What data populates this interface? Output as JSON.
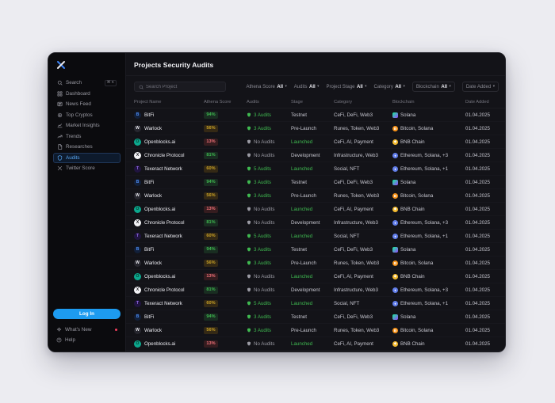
{
  "window": {
    "title": "Projects Security Audits"
  },
  "colors": {
    "accent_blue": "#1d9bf0",
    "positive_green": "#3fb950",
    "warning_yellow": "#c9a227",
    "negative_red": "#f07178",
    "active_link_blue": "#58a6f2"
  },
  "sidebar": {
    "items": [
      {
        "label": "Search",
        "icon": "search",
        "shortcut": "⌘ K"
      },
      {
        "label": "Dashboard",
        "icon": "dashboard"
      },
      {
        "label": "News Feed",
        "icon": "news-feed"
      },
      {
        "label": "Top Cryptos",
        "icon": "top-cryptos"
      },
      {
        "label": "Market Insights",
        "icon": "market-insights"
      },
      {
        "label": "Trends",
        "icon": "trends"
      },
      {
        "label": "Researches",
        "icon": "researches"
      },
      {
        "label": "Audits",
        "icon": "shield",
        "active": true
      },
      {
        "label": "Twitter Score",
        "icon": "x-twitter"
      }
    ],
    "login_label": "Log In",
    "whats_new_label": "What's New",
    "help_label": "Help"
  },
  "toolbar": {
    "search_placeholder": "Search Project",
    "filters": [
      {
        "label": "Athena Score",
        "value": "All"
      },
      {
        "label": "Audits",
        "value": "All"
      },
      {
        "label": "Project Stage",
        "value": "All"
      },
      {
        "label": "Category",
        "value": "All"
      },
      {
        "label": "Blockchain",
        "value": "All"
      },
      {
        "label": "Date Added",
        "value": ""
      }
    ]
  },
  "table": {
    "columns": [
      "Project Name",
      "Athena Score",
      "Audits",
      "Stage",
      "Category",
      "Blockchain",
      "Date Added"
    ],
    "rows": [
      {
        "name": "BitFi",
        "avatar": "bitfi",
        "score": "94%",
        "score_level": "high",
        "audits_label": "3 Audits",
        "audited": true,
        "stage": "Testnet",
        "stage_live": false,
        "category": "CeFi, DeFi, Web3",
        "chain": "solana",
        "blockchain": "Solana",
        "date": "01.04.2025"
      },
      {
        "name": "Warlock",
        "avatar": "warlock",
        "score": "56%",
        "score_level": "mid",
        "audits_label": "3 Audits",
        "audited": true,
        "stage": "Pre-Launch",
        "stage_live": false,
        "category": "Runes, Token, Web3",
        "chain": "bitcoin",
        "blockchain": "Bitcoin, Solana",
        "date": "01.04.2025"
      },
      {
        "name": "Openblocks.ai",
        "avatar": "openblocks",
        "score": "13%",
        "score_level": "low",
        "audits_label": "No Audits",
        "audited": false,
        "stage": "Launched",
        "stage_live": true,
        "category": "CeFi, AI, Payment",
        "chain": "bnb",
        "blockchain": "BNB Chain",
        "date": "01.04.2025"
      },
      {
        "name": "Chronicle Protocol",
        "avatar": "chronicle",
        "score": "81%",
        "score_level": "high",
        "audits_label": "No Audits",
        "audited": false,
        "stage": "Development",
        "stage_live": false,
        "category": "Infrastructure, Web3",
        "chain": "ethereum",
        "blockchain": "Ethereum, Solana, +3",
        "date": "01.04.2025"
      },
      {
        "name": "Texeract Network",
        "avatar": "texeract",
        "score": "60%",
        "score_level": "mid",
        "audits_label": "5 Audits",
        "audited": true,
        "stage": "Launched",
        "stage_live": true,
        "category": "Social, NFT",
        "chain": "ethereum",
        "blockchain": "Ethereum, Solana, +1",
        "date": "01.04.2025"
      },
      {
        "name": "BitFi",
        "avatar": "bitfi",
        "score": "94%",
        "score_level": "high",
        "audits_label": "3 Audits",
        "audited": true,
        "stage": "Testnet",
        "stage_live": false,
        "category": "CeFi, DeFi, Web3",
        "chain": "solana",
        "blockchain": "Solana",
        "date": "01.04.2025"
      },
      {
        "name": "Warlock",
        "avatar": "warlock",
        "score": "56%",
        "score_level": "mid",
        "audits_label": "3 Audits",
        "audited": true,
        "stage": "Pre-Launch",
        "stage_live": false,
        "category": "Runes, Token, Web3",
        "chain": "bitcoin",
        "blockchain": "Bitcoin, Solana",
        "date": "01.04.2025"
      },
      {
        "name": "Openblocks.ai",
        "avatar": "openblocks",
        "score": "13%",
        "score_level": "low",
        "audits_label": "No Audits",
        "audited": false,
        "stage": "Launched",
        "stage_live": true,
        "category": "CeFi, AI, Payment",
        "chain": "bnb",
        "blockchain": "BNB Chain",
        "date": "01.04.2025"
      },
      {
        "name": "Chronicle Protocol",
        "avatar": "chronicle",
        "score": "81%",
        "score_level": "high",
        "audits_label": "No Audits",
        "audited": false,
        "stage": "Development",
        "stage_live": false,
        "category": "Infrastructure, Web3",
        "chain": "ethereum",
        "blockchain": "Ethereum, Solana, +3",
        "date": "01.04.2025"
      },
      {
        "name": "Texeract Network",
        "avatar": "texeract",
        "score": "60%",
        "score_level": "mid",
        "audits_label": "5 Audits",
        "audited": true,
        "stage": "Launched",
        "stage_live": true,
        "category": "Social, NFT",
        "chain": "ethereum",
        "blockchain": "Ethereum, Solana, +1",
        "date": "01.04.2025"
      },
      {
        "name": "BitFi",
        "avatar": "bitfi",
        "score": "94%",
        "score_level": "high",
        "audits_label": "3 Audits",
        "audited": true,
        "stage": "Testnet",
        "stage_live": false,
        "category": "CeFi, DeFi, Web3",
        "chain": "solana",
        "blockchain": "Solana",
        "date": "01.04.2025"
      },
      {
        "name": "Warlock",
        "avatar": "warlock",
        "score": "56%",
        "score_level": "mid",
        "audits_label": "3 Audits",
        "audited": true,
        "stage": "Pre-Launch",
        "stage_live": false,
        "category": "Runes, Token, Web3",
        "chain": "bitcoin",
        "blockchain": "Bitcoin, Solana",
        "date": "01.04.2025"
      },
      {
        "name": "Openblocks.ai",
        "avatar": "openblocks",
        "score": "13%",
        "score_level": "low",
        "audits_label": "No Audits",
        "audited": false,
        "stage": "Launched",
        "stage_live": true,
        "category": "CeFi, AI, Payment",
        "chain": "bnb",
        "blockchain": "BNB Chain",
        "date": "01.04.2025"
      },
      {
        "name": "Chronicle Protocol",
        "avatar": "chronicle",
        "score": "81%",
        "score_level": "high",
        "audits_label": "No Audits",
        "audited": false,
        "stage": "Development",
        "stage_live": false,
        "category": "Infrastructure, Web3",
        "chain": "ethereum",
        "blockchain": "Ethereum, Solana, +3",
        "date": "01.04.2025"
      },
      {
        "name": "Texeract Network",
        "avatar": "texeract",
        "score": "60%",
        "score_level": "mid",
        "audits_label": "5 Audits",
        "audited": true,
        "stage": "Launched",
        "stage_live": true,
        "category": "Social, NFT",
        "chain": "ethereum",
        "blockchain": "Ethereum, Solana, +1",
        "date": "01.04.2025"
      },
      {
        "name": "BitFi",
        "avatar": "bitfi",
        "score": "94%",
        "score_level": "high",
        "audits_label": "3 Audits",
        "audited": true,
        "stage": "Testnet",
        "stage_live": false,
        "category": "CeFi, DeFi, Web3",
        "chain": "solana",
        "blockchain": "Solana",
        "date": "01.04.2025"
      },
      {
        "name": "Warlock",
        "avatar": "warlock",
        "score": "56%",
        "score_level": "mid",
        "audits_label": "3 Audits",
        "audited": true,
        "stage": "Pre-Launch",
        "stage_live": false,
        "category": "Runes, Token, Web3",
        "chain": "bitcoin",
        "blockchain": "Bitcoin, Solana",
        "date": "01.04.2025"
      },
      {
        "name": "Openblocks.ai",
        "avatar": "openblocks",
        "score": "13%",
        "score_level": "low",
        "audits_label": "No Audits",
        "audited": false,
        "stage": "Launched",
        "stage_live": true,
        "category": "CeFi, AI, Payment",
        "chain": "bnb",
        "blockchain": "BNB Chain",
        "date": "01.04.2025"
      }
    ]
  }
}
